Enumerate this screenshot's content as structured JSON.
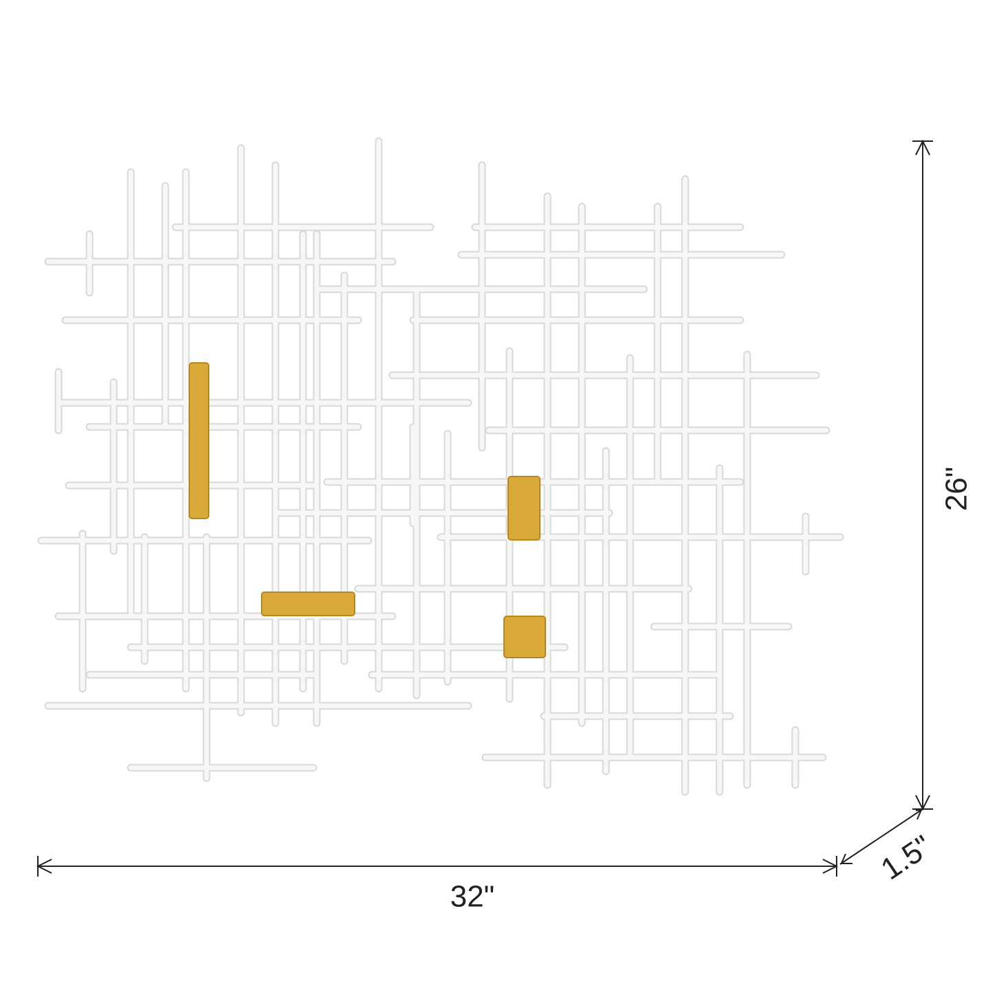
{
  "dimensions": {
    "width": "32\"",
    "height": "26\"",
    "depth": "1.5\""
  }
}
